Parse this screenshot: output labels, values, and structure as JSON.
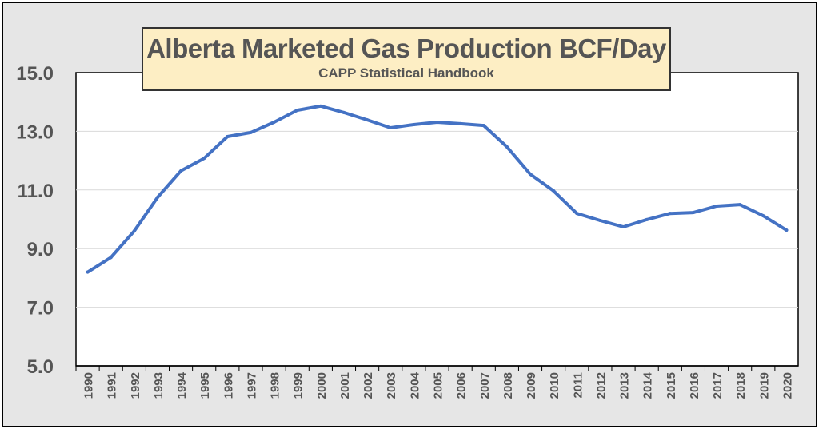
{
  "chart_data": {
    "type": "line",
    "title": "Alberta Marketed Gas Production BCF/Day",
    "subtitle": "CAPP Statistical Handbook",
    "xlabel": "",
    "ylabel": "",
    "ylim": [
      5.0,
      15.0
    ],
    "yticks": [
      "5.0",
      "7.0",
      "9.0",
      "11.0",
      "13.0",
      "15.0"
    ],
    "grid": true,
    "line_color": "#4472c4",
    "categories": [
      "1990",
      "1991",
      "1992",
      "1993",
      "1994",
      "1995",
      "1996",
      "1997",
      "1998",
      "1999",
      "2000",
      "2001",
      "2002",
      "2003",
      "2004",
      "2005",
      "2006",
      "2007",
      "2008",
      "2009",
      "2010",
      "2011",
      "2012",
      "2013",
      "2014",
      "2015",
      "2016",
      "2017",
      "2018",
      "2019",
      "2020"
    ],
    "values": [
      8.2,
      8.7,
      9.6,
      10.75,
      11.65,
      12.08,
      12.82,
      12.96,
      13.31,
      13.72,
      13.86,
      13.64,
      13.39,
      13.12,
      13.23,
      13.31,
      13.26,
      13.2,
      12.47,
      11.54,
      10.97,
      10.2,
      9.96,
      9.74,
      9.99,
      10.2,
      10.23,
      10.45,
      10.5,
      10.12,
      9.63
    ]
  }
}
